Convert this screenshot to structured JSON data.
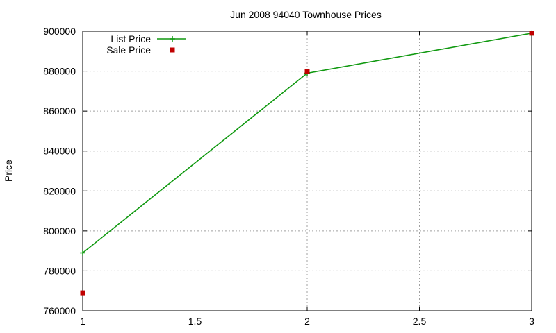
{
  "chart_data": {
    "type": "line",
    "title": "Jun 2008 94040 Townhouse Prices",
    "xlabel": "",
    "ylabel": "Price",
    "xlim": [
      1,
      3
    ],
    "ylim": [
      760000,
      900000
    ],
    "xticks": [
      1,
      1.5,
      2,
      2.5,
      3
    ],
    "xtick_labels": [
      "1",
      "1.5",
      "2",
      "2.5",
      "3"
    ],
    "yticks": [
      760000,
      780000,
      800000,
      820000,
      840000,
      860000,
      880000,
      900000
    ],
    "ytick_labels": [
      "760000",
      "780000",
      "800000",
      "820000",
      "840000",
      "860000",
      "880000",
      "900000"
    ],
    "grid": true,
    "legend_position": "top-left",
    "series": [
      {
        "name": "List Price",
        "style": "line-with-plus-markers",
        "color": "#109910",
        "x": [
          1,
          2,
          3
        ],
        "y": [
          789000,
          879000,
          899000
        ]
      },
      {
        "name": "Sale Price",
        "style": "square-markers",
        "color": "#c00000",
        "x": [
          1,
          2,
          3
        ],
        "y": [
          769000,
          880000,
          899000
        ]
      }
    ]
  }
}
